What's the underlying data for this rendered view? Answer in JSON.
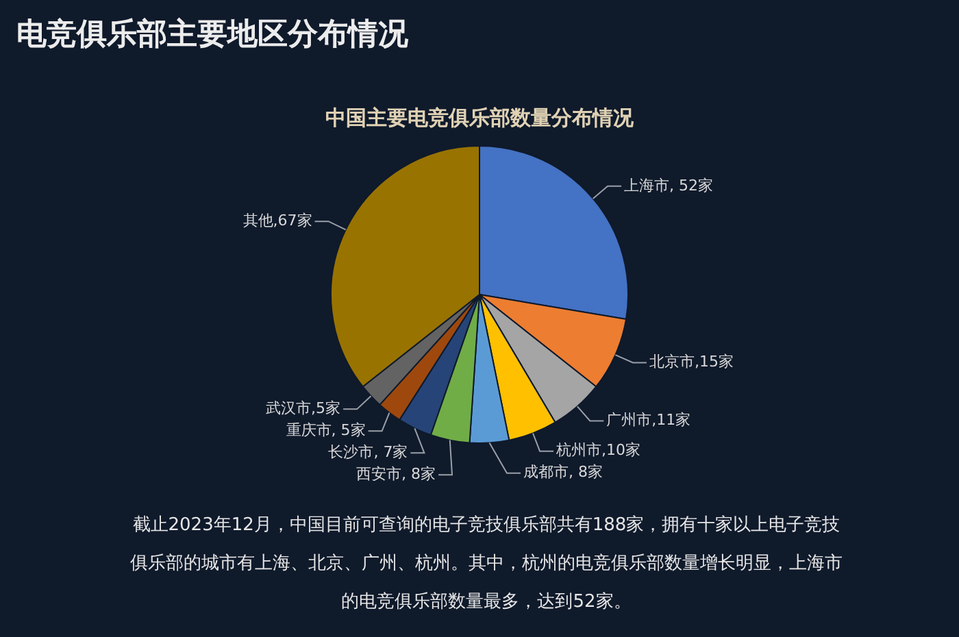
{
  "chart_data": {
    "type": "pie",
    "title": "电竞俱乐部主要地区分布情况",
    "subtitle": "中国主要电竞俱乐部数量分布情况",
    "categories": [
      "上海市",
      "北京市",
      "广州市",
      "杭州市",
      "成都市",
      "西安市",
      "长沙市",
      "重庆市",
      "武汉市",
      "其他"
    ],
    "values": [
      52,
      15,
      11,
      10,
      8,
      8,
      7,
      5,
      5,
      67
    ],
    "value_labels": [
      ", 52家",
      ",15家",
      ",11家",
      ",10家",
      ", 8家",
      ", 8家",
      ", 7家",
      ", 5家",
      ",5家",
      ",67家"
    ],
    "colors": [
      "#4472c4",
      "#ed7d31",
      "#a5a5a5",
      "#ffc000",
      "#5b9bd5",
      "#70ad47",
      "#264478",
      "#9e480e",
      "#636363",
      "#997300"
    ],
    "annotations": [
      "截止2023年12月，中国目前可查询的电子竞技俱乐部共有188家，拥有十家以上电子竞技俱乐部的城市有上海、北京、广州、杭州。其中，杭州的电竞俱乐部数量增长明显，上海市的电竞俱乐部数量最多，达到52家。"
    ]
  }
}
